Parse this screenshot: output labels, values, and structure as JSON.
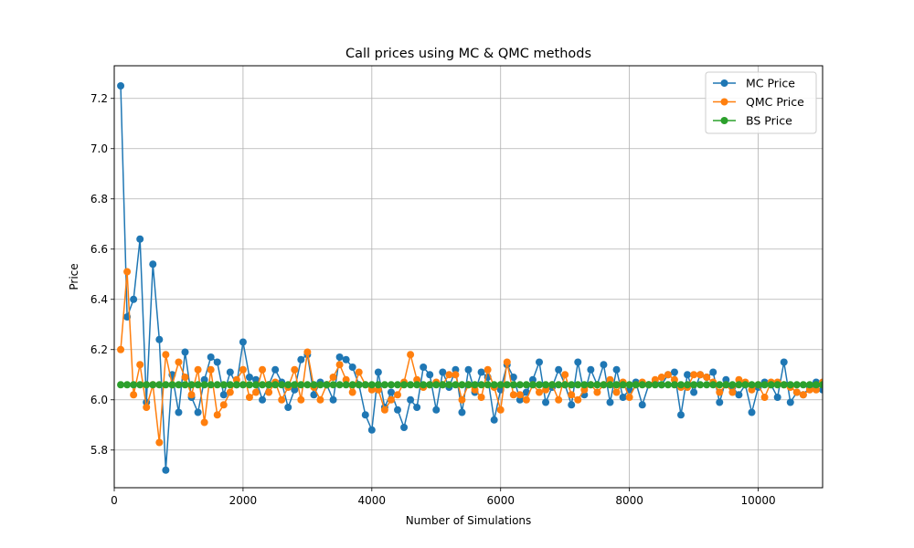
{
  "chart_data": {
    "type": "line",
    "title": "Call prices using MC & QMC methods",
    "xlabel": "Number of Simulations",
    "ylabel": "Price",
    "xlim": [
      0,
      11000
    ],
    "ylim": [
      5.65,
      7.33
    ],
    "xticks": [
      0,
      2000,
      4000,
      6000,
      8000,
      10000
    ],
    "yticks": [
      5.8,
      6.0,
      6.2,
      6.4,
      6.6,
      6.8,
      7.0,
      7.2
    ],
    "grid": true,
    "legend_position": "top-right",
    "x_start": 100,
    "x_step": 100,
    "series": [
      {
        "name": "MC Price",
        "color": "#1f77b4",
        "marker": "circle",
        "values": [
          7.25,
          6.33,
          6.4,
          6.64,
          5.99,
          6.54,
          6.24,
          5.72,
          6.1,
          5.95,
          6.19,
          6.01,
          5.95,
          6.08,
          6.17,
          6.15,
          6.02,
          6.11,
          6.06,
          6.23,
          6.09,
          6.08,
          6.0,
          6.06,
          6.12,
          6.07,
          5.97,
          6.04,
          6.16,
          6.18,
          6.02,
          6.07,
          6.06,
          6.0,
          6.17,
          6.16,
          6.13,
          6.06,
          5.94,
          5.88,
          6.11,
          5.97,
          6.03,
          5.96,
          5.89,
          6.0,
          5.97,
          6.13,
          6.1,
          5.96,
          6.11,
          6.05,
          6.12,
          5.95,
          6.12,
          6.03,
          6.11,
          6.09,
          5.92,
          6.04,
          6.14,
          6.09,
          6.0,
          6.03,
          6.08,
          6.15,
          5.99,
          6.05,
          6.12,
          6.06,
          5.98,
          6.15,
          6.02,
          6.12,
          6.06,
          6.14,
          5.99,
          6.12,
          6.01,
          6.04,
          6.07,
          5.98,
          6.06,
          6.07,
          6.06,
          6.1,
          6.11,
          5.94,
          6.1,
          6.03,
          6.1,
          6.09,
          6.11,
          5.99,
          6.08,
          6.05,
          6.02,
          6.06,
          5.95,
          6.05,
          6.07,
          6.06,
          6.01,
          6.15,
          5.99,
          6.03,
          6.02,
          6.05,
          6.07,
          6.04
        ]
      },
      {
        "name": "QMC Price",
        "color": "#ff7f0e",
        "marker": "circle",
        "values": [
          6.2,
          6.51,
          6.02,
          6.14,
          5.97,
          6.06,
          5.83,
          6.18,
          6.06,
          6.15,
          6.09,
          6.02,
          6.12,
          5.91,
          6.12,
          5.94,
          5.98,
          6.03,
          6.08,
          6.12,
          6.01,
          6.03,
          6.12,
          6.03,
          6.07,
          6.0,
          6.05,
          6.12,
          6.0,
          6.19,
          6.05,
          6.0,
          6.06,
          6.09,
          6.14,
          6.08,
          6.03,
          6.11,
          6.06,
          6.04,
          6.04,
          5.96,
          6.0,
          6.02,
          6.07,
          6.18,
          6.08,
          6.05,
          6.06,
          6.07,
          6.06,
          6.1,
          6.1,
          6.0,
          6.06,
          6.04,
          6.01,
          6.12,
          6.05,
          5.96,
          6.15,
          6.02,
          6.02,
          6.0,
          6.06,
          6.03,
          6.04,
          6.06,
          6.0,
          6.1,
          6.02,
          6.0,
          6.04,
          6.06,
          6.03,
          6.06,
          6.08,
          6.03,
          6.07,
          6.01,
          6.06,
          6.07,
          6.06,
          6.08,
          6.09,
          6.1,
          6.08,
          6.05,
          6.05,
          6.1,
          6.1,
          6.09,
          6.07,
          6.03,
          6.06,
          6.03,
          6.08,
          6.07,
          6.04,
          6.06,
          6.01,
          6.07,
          6.07,
          6.06,
          6.05,
          6.03,
          6.02,
          6.04,
          6.04,
          6.07
        ]
      },
      {
        "name": "BS Price",
        "color": "#2ca02c",
        "marker": "circle",
        "constant": 6.06
      }
    ]
  }
}
